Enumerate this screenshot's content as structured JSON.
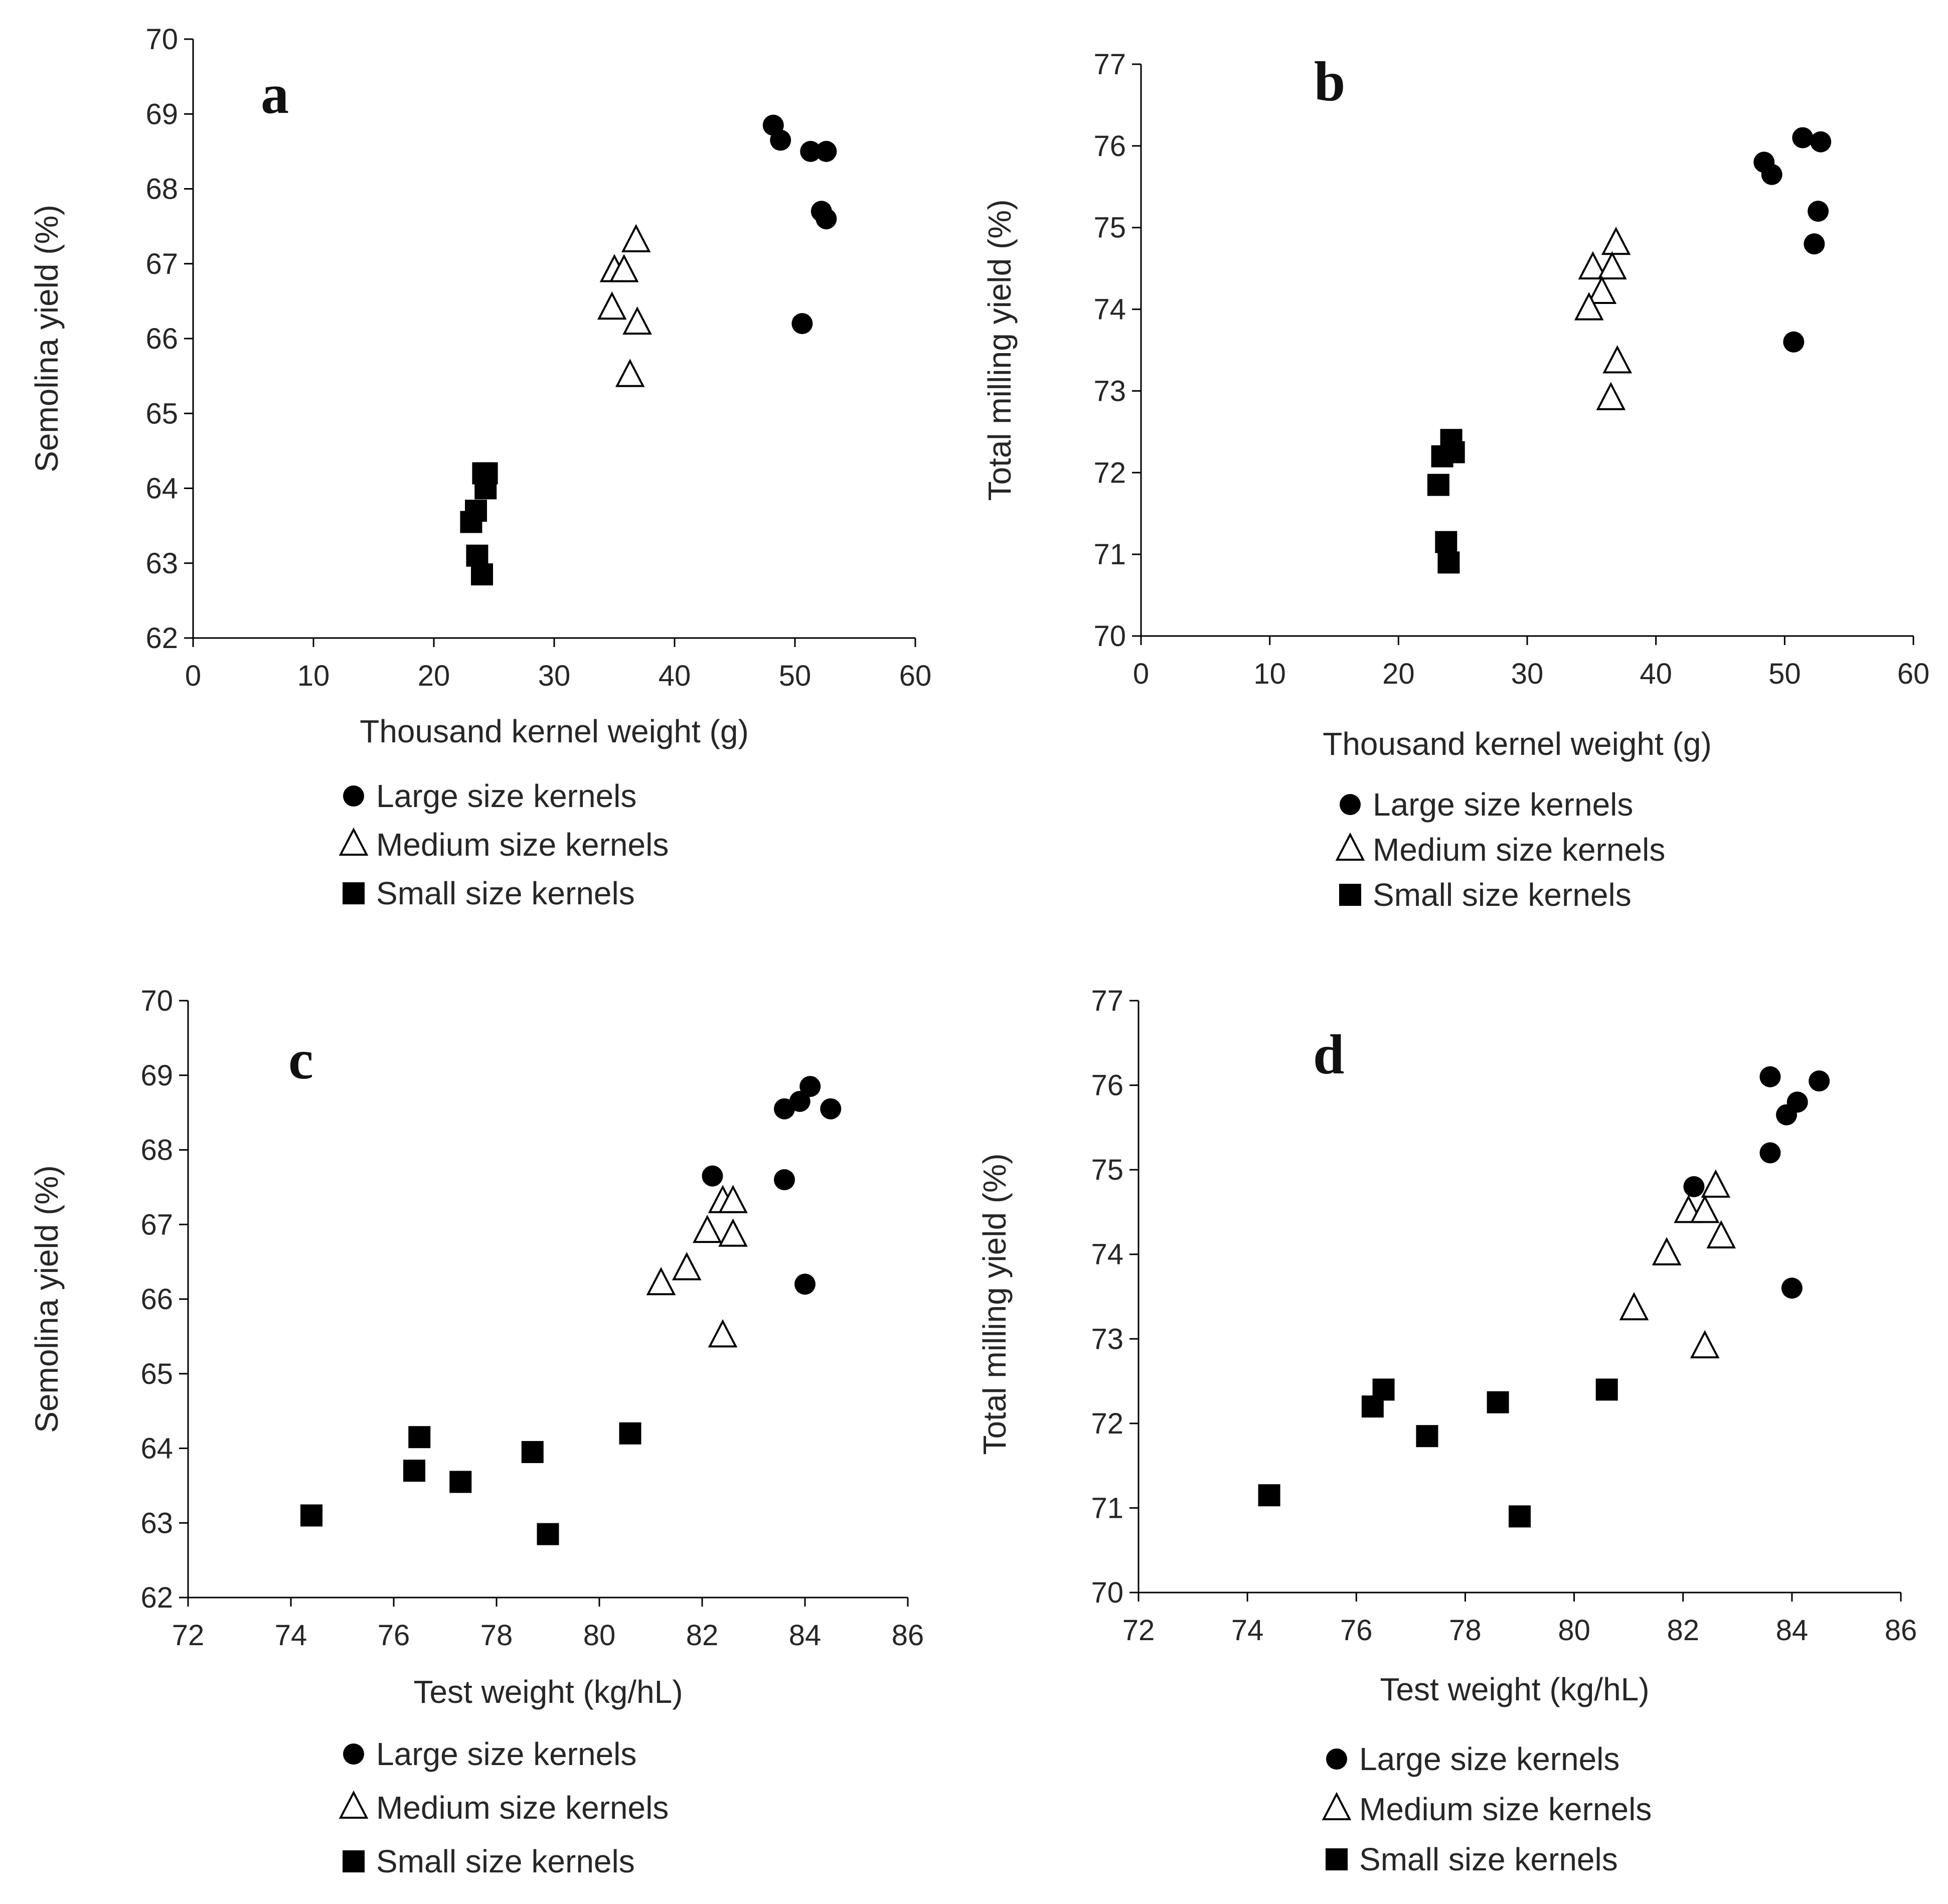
{
  "chart_data": [
    {
      "type": "scatter",
      "panel_label": "a",
      "xlabel": "Thousand kernel weight (g)",
      "ylabel": "Semolina yield (%)",
      "xlim": [
        0,
        60
      ],
      "ylim": [
        62,
        70
      ],
      "xticks": [
        0,
        10,
        20,
        30,
        40,
        50,
        60
      ],
      "yticks": [
        62,
        63,
        64,
        65,
        66,
        67,
        68,
        69,
        70
      ],
      "grid": false,
      "legend_position": "below",
      "series": [
        {
          "name": "Large size kernels",
          "marker": "circle",
          "points": [
            [
              48.2,
              68.85
            ],
            [
              48.8,
              68.65
            ],
            [
              51.3,
              68.5
            ],
            [
              52.6,
              68.5
            ],
            [
              52.2,
              67.7
            ],
            [
              52.6,
              67.6
            ],
            [
              50.6,
              66.2
            ]
          ]
        },
        {
          "name": "Medium size kernels",
          "marker": "triangle",
          "points": [
            [
              35.0,
              66.9
            ],
            [
              35.8,
              66.9
            ],
            [
              36.8,
              67.3
            ],
            [
              34.8,
              66.4
            ],
            [
              36.9,
              66.2
            ],
            [
              36.3,
              65.5
            ]
          ]
        },
        {
          "name": "Small size kernels",
          "marker": "square",
          "points": [
            [
              24.1,
              64.2
            ],
            [
              24.4,
              64.2
            ],
            [
              24.3,
              64.0
            ],
            [
              23.5,
              63.7
            ],
            [
              23.1,
              63.55
            ],
            [
              23.6,
              63.1
            ],
            [
              24.0,
              62.85
            ]
          ]
        }
      ]
    },
    {
      "type": "scatter",
      "panel_label": "b",
      "xlabel": "Thousand kernel weight (g)",
      "ylabel": "Total milling yield (%)",
      "xlim": [
        0,
        60
      ],
      "ylim": [
        70,
        77
      ],
      "xticks": [
        0,
        10,
        20,
        30,
        40,
        50,
        60
      ],
      "yticks": [
        70,
        71,
        72,
        73,
        74,
        75,
        76,
        77
      ],
      "grid": false,
      "legend_position": "below",
      "series": [
        {
          "name": "Large size kernels",
          "marker": "circle",
          "points": [
            [
              48.4,
              75.8
            ],
            [
              49.0,
              75.65
            ],
            [
              51.4,
              76.1
            ],
            [
              52.8,
              76.05
            ],
            [
              52.6,
              75.2
            ],
            [
              52.3,
              74.8
            ],
            [
              50.7,
              73.6
            ]
          ]
        },
        {
          "name": "Medium size kernels",
          "marker": "triangle",
          "points": [
            [
              36.9,
              74.8
            ],
            [
              35.1,
              74.5
            ],
            [
              36.6,
              74.5
            ],
            [
              35.8,
              74.2
            ],
            [
              34.8,
              74.0
            ],
            [
              37.0,
              73.35
            ],
            [
              36.5,
              72.9
            ]
          ]
        },
        {
          "name": "Small size kernels",
          "marker": "square",
          "points": [
            [
              24.1,
              72.4
            ],
            [
              24.3,
              72.25
            ],
            [
              23.4,
              72.2
            ],
            [
              23.1,
              71.85
            ],
            [
              23.7,
              71.15
            ],
            [
              23.9,
              70.9
            ]
          ]
        }
      ]
    },
    {
      "type": "scatter",
      "panel_label": "c",
      "xlabel": "Test weight (kg/hL)",
      "ylabel": "Semolina yield (%)",
      "xlim": [
        72,
        86
      ],
      "ylim": [
        62,
        70
      ],
      "xticks": [
        72,
        74,
        76,
        78,
        80,
        82,
        84,
        86
      ],
      "yticks": [
        62,
        63,
        64,
        65,
        66,
        67,
        68,
        69,
        70
      ],
      "grid": false,
      "legend_position": "below",
      "series": [
        {
          "name": "Large size kernels",
          "marker": "circle",
          "points": [
            [
              84.1,
              68.85
            ],
            [
              83.9,
              68.65
            ],
            [
              83.6,
              68.55
            ],
            [
              84.5,
              68.55
            ],
            [
              82.2,
              67.65
            ],
            [
              83.6,
              67.6
            ],
            [
              84.0,
              66.2
            ]
          ]
        },
        {
          "name": "Medium size kernels",
          "marker": "triangle",
          "points": [
            [
              82.4,
              67.3
            ],
            [
              82.6,
              67.3
            ],
            [
              82.1,
              66.9
            ],
            [
              82.6,
              66.85
            ],
            [
              81.7,
              66.4
            ],
            [
              81.2,
              66.2
            ],
            [
              82.4,
              65.5
            ]
          ]
        },
        {
          "name": "Small size kernels",
          "marker": "square",
          "points": [
            [
              80.6,
              64.2
            ],
            [
              76.5,
              64.15
            ],
            [
              78.7,
              63.95
            ],
            [
              76.4,
              63.7
            ],
            [
              77.3,
              63.55
            ],
            [
              74.4,
              63.1
            ],
            [
              79.0,
              62.85
            ]
          ]
        }
      ]
    },
    {
      "type": "scatter",
      "panel_label": "d",
      "xlabel": "Test weight (kg/hL)",
      "ylabel": "Total milling  yield (%)",
      "xlim": [
        72,
        86
      ],
      "ylim": [
        70,
        77
      ],
      "xticks": [
        72,
        74,
        76,
        78,
        80,
        82,
        84,
        86
      ],
      "yticks": [
        70,
        71,
        72,
        73,
        74,
        75,
        76,
        77
      ],
      "grid": false,
      "legend_position": "below",
      "series": [
        {
          "name": "Large size kernels",
          "marker": "circle",
          "points": [
            [
              83.6,
              76.1
            ],
            [
              84.5,
              76.05
            ],
            [
              84.1,
              75.8
            ],
            [
              83.9,
              75.65
            ],
            [
              83.6,
              75.2
            ],
            [
              82.2,
              74.8
            ],
            [
              84.0,
              73.6
            ]
          ]
        },
        {
          "name": "Medium size kernels",
          "marker": "triangle",
          "points": [
            [
              82.6,
              74.8
            ],
            [
              82.1,
              74.5
            ],
            [
              82.4,
              74.5
            ],
            [
              82.7,
              74.2
            ],
            [
              81.7,
              74.0
            ],
            [
              81.1,
              73.35
            ],
            [
              82.4,
              72.9
            ]
          ]
        },
        {
          "name": "Small size kernels",
          "marker": "square",
          "points": [
            [
              76.5,
              72.4
            ],
            [
              80.6,
              72.4
            ],
            [
              78.6,
              72.25
            ],
            [
              76.3,
              72.2
            ],
            [
              77.3,
              71.85
            ],
            [
              74.4,
              71.15
            ],
            [
              79.0,
              70.9
            ]
          ]
        }
      ]
    }
  ]
}
